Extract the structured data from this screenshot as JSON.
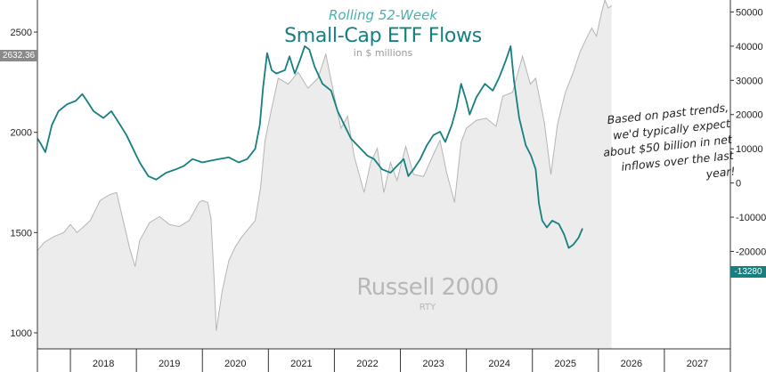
{
  "title": {
    "subtitle": "Rolling 52-Week",
    "main": "Small-Cap ETF Flows",
    "unit": "in $ millions"
  },
  "annotation": "Based on past trends, we'd typically expect about $50 billion in net inflows over the last year!",
  "watermark": {
    "name": "Russell 2000",
    "ticker": "RTY"
  },
  "colors": {
    "flows": "#167f80",
    "index_line": "#b5b5b5",
    "index_fill": "#ececec",
    "last_tag_flows": "#167f80",
    "last_tag_index": "#8a8a8a"
  },
  "chart_data": {
    "type": "line",
    "title": "Small-Cap ETF Flows",
    "x": {
      "type": "date",
      "range": [
        2017.5,
        2028.0
      ],
      "tick_labels": [
        "2018",
        "2019",
        "2020",
        "2021",
        "2022",
        "2023",
        "2024",
        "2025",
        "2026",
        "2027"
      ]
    },
    "y_left": {
      "label": "",
      "range": [
        920,
        2660
      ],
      "ticks": [
        1000,
        1500,
        2000,
        2500
      ],
      "last_value_label": "2632.36"
    },
    "y_right": {
      "label": "in $ millions",
      "range": [
        -48500,
        53500
      ],
      "ticks": [
        -20000,
        -10000,
        0,
        10000,
        20000,
        30000,
        40000,
        50000
      ],
      "last_value_label": "-13280"
    },
    "grid": false,
    "series": [
      {
        "name": "Russell 2000",
        "axis": "left",
        "style": "area",
        "points": [
          [
            2017.5,
            1410
          ],
          [
            2017.6,
            1450
          ],
          [
            2017.75,
            1480
          ],
          [
            2017.9,
            1500
          ],
          [
            2018.0,
            1540
          ],
          [
            2018.1,
            1500
          ],
          [
            2018.2,
            1530
          ],
          [
            2018.3,
            1560
          ],
          [
            2018.45,
            1660
          ],
          [
            2018.6,
            1690
          ],
          [
            2018.7,
            1700
          ],
          [
            2018.8,
            1560
          ],
          [
            2018.9,
            1420
          ],
          [
            2018.98,
            1330
          ],
          [
            2019.05,
            1460
          ],
          [
            2019.2,
            1550
          ],
          [
            2019.35,
            1580
          ],
          [
            2019.5,
            1540
          ],
          [
            2019.65,
            1530
          ],
          [
            2019.8,
            1560
          ],
          [
            2019.95,
            1650
          ],
          [
            2020.0,
            1660
          ],
          [
            2020.08,
            1650
          ],
          [
            2020.13,
            1570
          ],
          [
            2020.18,
            1250
          ],
          [
            2020.21,
            1010
          ],
          [
            2020.3,
            1210
          ],
          [
            2020.4,
            1360
          ],
          [
            2020.5,
            1430
          ],
          [
            2020.6,
            1480
          ],
          [
            2020.7,
            1520
          ],
          [
            2020.8,
            1560
          ],
          [
            2020.88,
            1720
          ],
          [
            2020.95,
            1960
          ],
          [
            2021.05,
            2120
          ],
          [
            2021.15,
            2270
          ],
          [
            2021.3,
            2240
          ],
          [
            2021.45,
            2300
          ],
          [
            2021.6,
            2220
          ],
          [
            2021.75,
            2270
          ],
          [
            2021.87,
            2390
          ],
          [
            2022.0,
            2180
          ],
          [
            2022.1,
            2020
          ],
          [
            2022.2,
            2080
          ],
          [
            2022.3,
            1880
          ],
          [
            2022.45,
            1700
          ],
          [
            2022.55,
            1850
          ],
          [
            2022.65,
            1920
          ],
          [
            2022.75,
            1700
          ],
          [
            2022.85,
            1850
          ],
          [
            2022.95,
            1760
          ],
          [
            2023.08,
            1930
          ],
          [
            2023.2,
            1790
          ],
          [
            2023.35,
            1780
          ],
          [
            2023.5,
            1890
          ],
          [
            2023.6,
            1960
          ],
          [
            2023.7,
            1800
          ],
          [
            2023.82,
            1650
          ],
          [
            2023.92,
            1950
          ],
          [
            2024.0,
            2020
          ],
          [
            2024.15,
            2060
          ],
          [
            2024.3,
            2070
          ],
          [
            2024.45,
            2030
          ],
          [
            2024.55,
            2180
          ],
          [
            2024.7,
            2200
          ],
          [
            2024.85,
            2380
          ],
          [
            2024.97,
            2240
          ],
          [
            2025.05,
            2270
          ],
          [
            2025.18,
            2050
          ],
          [
            2025.28,
            1790
          ],
          [
            2025.38,
            2040
          ],
          [
            2025.5,
            2200
          ],
          [
            2025.62,
            2300
          ],
          [
            2025.72,
            2400
          ],
          [
            2025.82,
            2470
          ],
          [
            2025.9,
            2520
          ],
          [
            2025.97,
            2480
          ],
          [
            2026.05,
            2600
          ],
          [
            2026.1,
            2660
          ],
          [
            2026.15,
            2620
          ],
          [
            2026.2,
            2632
          ]
        ]
      },
      {
        "name": "Small-Cap ETF Flows",
        "axis": "right",
        "style": "line",
        "points": [
          [
            2017.5,
            13000
          ],
          [
            2017.55,
            11500
          ],
          [
            2017.62,
            9000
          ],
          [
            2017.72,
            17000
          ],
          [
            2017.82,
            21000
          ],
          [
            2017.95,
            23000
          ],
          [
            2018.08,
            24000
          ],
          [
            2018.18,
            26000
          ],
          [
            2018.25,
            24000
          ],
          [
            2018.35,
            21000
          ],
          [
            2018.5,
            19000
          ],
          [
            2018.62,
            21000
          ],
          [
            2018.72,
            18000
          ],
          [
            2018.85,
            14000
          ],
          [
            2018.95,
            10000
          ],
          [
            2019.05,
            6000
          ],
          [
            2019.18,
            2000
          ],
          [
            2019.3,
            1000
          ],
          [
            2019.45,
            3000
          ],
          [
            2019.6,
            4000
          ],
          [
            2019.72,
            5000
          ],
          [
            2019.85,
            7000
          ],
          [
            2020.0,
            6000
          ],
          [
            2020.12,
            6500
          ],
          [
            2020.25,
            7000
          ],
          [
            2020.4,
            7500
          ],
          [
            2020.55,
            6000
          ],
          [
            2020.68,
            7000
          ],
          [
            2020.8,
            10000
          ],
          [
            2020.87,
            17000
          ],
          [
            2020.92,
            28000
          ],
          [
            2020.98,
            38000
          ],
          [
            2021.05,
            33000
          ],
          [
            2021.12,
            32000
          ],
          [
            2021.25,
            33000
          ],
          [
            2021.32,
            37000
          ],
          [
            2021.4,
            32000
          ],
          [
            2021.48,
            36000
          ],
          [
            2021.55,
            40000
          ],
          [
            2021.62,
            39000
          ],
          [
            2021.7,
            34000
          ],
          [
            2021.82,
            29000
          ],
          [
            2021.95,
            27000
          ],
          [
            2022.05,
            21000
          ],
          [
            2022.15,
            17000
          ],
          [
            2022.25,
            13000
          ],
          [
            2022.4,
            10000
          ],
          [
            2022.5,
            8000
          ],
          [
            2022.6,
            7000
          ],
          [
            2022.72,
            4000
          ],
          [
            2022.85,
            3000
          ],
          [
            2022.95,
            5000
          ],
          [
            2023.05,
            7000
          ],
          [
            2023.12,
            2000
          ],
          [
            2023.2,
            4000
          ],
          [
            2023.3,
            7000
          ],
          [
            2023.4,
            11000
          ],
          [
            2023.5,
            14000
          ],
          [
            2023.6,
            15000
          ],
          [
            2023.68,
            12000
          ],
          [
            2023.78,
            17000
          ],
          [
            2023.85,
            22000
          ],
          [
            2023.92,
            29000
          ],
          [
            2024.0,
            24000
          ],
          [
            2024.05,
            20000
          ],
          [
            2024.15,
            25000
          ],
          [
            2024.28,
            29000
          ],
          [
            2024.4,
            27000
          ],
          [
            2024.5,
            31000
          ],
          [
            2024.6,
            36000
          ],
          [
            2024.67,
            40000
          ],
          [
            2024.72,
            30000
          ],
          [
            2024.8,
            19000
          ],
          [
            2024.9,
            11000
          ],
          [
            2024.98,
            8000
          ],
          [
            2025.05,
            4000
          ],
          [
            2025.1,
            -6000
          ],
          [
            2025.15,
            -11000
          ],
          [
            2025.22,
            -13000
          ],
          [
            2025.3,
            -11000
          ],
          [
            2025.4,
            -12000
          ],
          [
            2025.48,
            -15000
          ],
          [
            2025.55,
            -19000
          ],
          [
            2025.62,
            -18000
          ],
          [
            2025.7,
            -16000
          ],
          [
            2025.76,
            -13280
          ]
        ]
      }
    ]
  },
  "tags": {
    "left": "2632.36",
    "right": "-13280"
  }
}
